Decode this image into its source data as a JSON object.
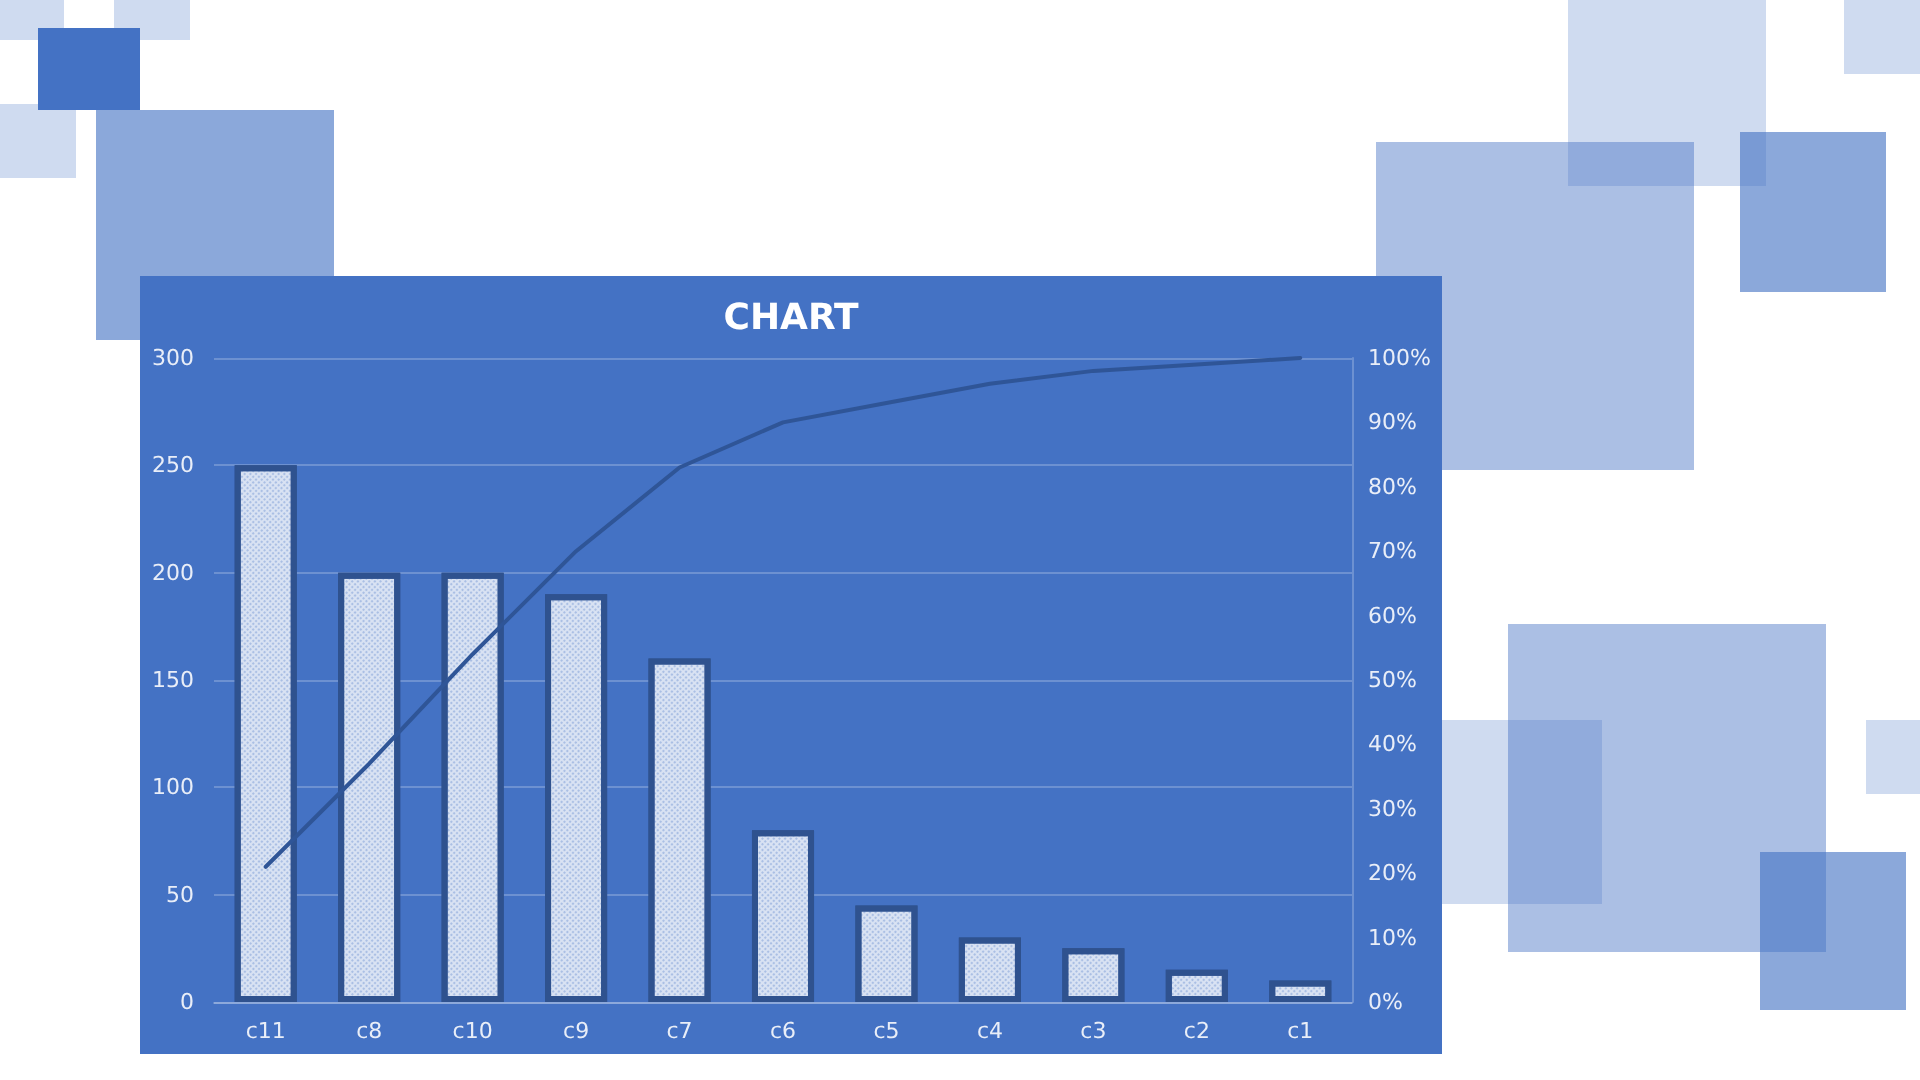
{
  "chart_data": {
    "type": "bar",
    "title": "CHART",
    "categories": [
      "c11",
      "c8",
      "c10",
      "c9",
      "c7",
      "c6",
      "c5",
      "c4",
      "c3",
      "c2",
      "c1"
    ],
    "series": [
      {
        "color": "#dae3f3",
        "values": [
          250,
          200,
          200,
          190,
          160,
          80,
          45,
          30,
          25,
          15,
          10
        ]
      },
      {
        "type": "line",
        "axis": "y2",
        "color": "#2f5597",
        "values": [
          21,
          37,
          54,
          70,
          83,
          90,
          93,
          96,
          98,
          99,
          100
        ]
      }
    ],
    "ylim": [
      0,
      300
    ],
    "yticks": [
      0,
      50,
      100,
      150,
      200,
      250,
      300
    ],
    "y2lim": [
      0,
      100
    ],
    "y2ticks": [
      {
        "value": 0,
        "label": "0%"
      },
      {
        "value": 10,
        "label": "10%"
      },
      {
        "value": 20,
        "label": "20%"
      },
      {
        "value": 30,
        "label": "30%"
      },
      {
        "value": 40,
        "label": "40%"
      },
      {
        "value": 50,
        "label": "50%"
      },
      {
        "value": 60,
        "label": "60%"
      },
      {
        "value": 70,
        "label": "70%"
      },
      {
        "value": 80,
        "label": "80%"
      },
      {
        "value": 90,
        "label": "90%"
      },
      {
        "value": 100,
        "label": "100%"
      }
    ],
    "grid": "y",
    "marker": "none",
    "line_style": "solid"
  }
}
